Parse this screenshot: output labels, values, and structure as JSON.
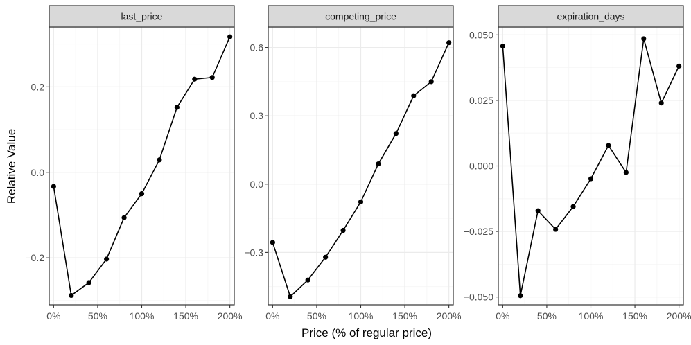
{
  "figure": {
    "ylabel": "Relative Value",
    "xlabel": "Price (% of regular price)"
  },
  "chart_data": [
    {
      "type": "line",
      "title": "last_price",
      "x": [
        0,
        20,
        40,
        60,
        80,
        100,
        120,
        140,
        160,
        180,
        200
      ],
      "y": [
        -0.033,
        -0.288,
        -0.258,
        -0.203,
        -0.106,
        -0.05,
        0.029,
        0.152,
        0.218,
        0.222,
        0.317
      ],
      "xlim": [
        -5,
        205
      ],
      "ylim": [
        -0.31,
        0.34
      ],
      "xticks": [
        0,
        50,
        100,
        150,
        200
      ],
      "xtick_labels": [
        "0%",
        "50%",
        "100%",
        "150%",
        "200%"
      ],
      "yticks": [
        -0.2,
        0.0,
        0.2
      ],
      "ytick_labels": [
        "−0.2",
        "0.0",
        "0.2"
      ],
      "grid": true
    },
    {
      "type": "line",
      "title": "competing_price",
      "x": [
        0,
        20,
        40,
        60,
        80,
        100,
        120,
        140,
        160,
        180,
        200
      ],
      "y": [
        -0.256,
        -0.494,
        -0.421,
        -0.321,
        -0.203,
        -0.078,
        0.089,
        0.222,
        0.388,
        0.45,
        0.621
      ],
      "xlim": [
        -5,
        205
      ],
      "ylim": [
        -0.53,
        0.69
      ],
      "xticks": [
        0,
        50,
        100,
        150,
        200
      ],
      "xtick_labels": [
        "0%",
        "50%",
        "100%",
        "150%",
        "200%"
      ],
      "yticks": [
        -0.3,
        0.0,
        0.3,
        0.6
      ],
      "ytick_labels": [
        "−0.3",
        "0.0",
        "0.3",
        "0.6"
      ],
      "grid": true
    },
    {
      "type": "line",
      "title": "expiration_days",
      "x": [
        0,
        20,
        40,
        60,
        80,
        100,
        120,
        140,
        160,
        180,
        200
      ],
      "y": [
        0.0457,
        -0.0495,
        -0.0171,
        -0.0242,
        -0.0155,
        -0.0049,
        0.0078,
        -0.0025,
        0.0485,
        0.024,
        0.0381
      ],
      "xlim": [
        -5,
        205
      ],
      "ylim": [
        -0.053,
        0.053
      ],
      "xticks": [
        0,
        50,
        100,
        150,
        200
      ],
      "xtick_labels": [
        "0%",
        "50%",
        "100%",
        "150%",
        "200%"
      ],
      "yticks": [
        -0.05,
        -0.025,
        0.0,
        0.025,
        0.05
      ],
      "ytick_labels": [
        "−0.050",
        "−0.025",
        "0.000",
        "0.025",
        "0.050"
      ],
      "grid": true
    }
  ],
  "style": {
    "panel_border": "#333333",
    "strip_fill": "#d9d9d9",
    "grid_major": "#ebebeb",
    "grid_minor": "#f5f5f5",
    "line_color": "#000000",
    "tick_text": "#4d4d4d"
  }
}
